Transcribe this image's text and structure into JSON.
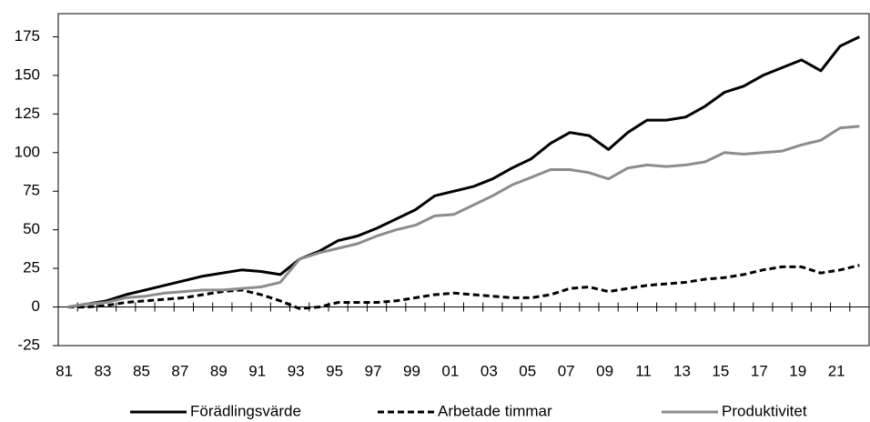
{
  "chart_data": {
    "type": "line",
    "categories": [
      "81",
      null,
      "83",
      null,
      "85",
      null,
      "87",
      null,
      "89",
      null,
      "91",
      null,
      "93",
      null,
      "95",
      null,
      "97",
      null,
      "99",
      null,
      "01",
      null,
      "03",
      null,
      "05",
      null,
      "07",
      null,
      "09",
      null,
      "11",
      null,
      "13",
      null,
      "15",
      null,
      "17",
      null,
      "19",
      null,
      "21",
      null
    ],
    "series": [
      {
        "name": "Förädlingsvärde",
        "color": "#000000",
        "dashed": false,
        "values": [
          0,
          2,
          4,
          8,
          11,
          14,
          17,
          20,
          22,
          24,
          23,
          21,
          31,
          36,
          43,
          46,
          51,
          57,
          63,
          72,
          75,
          78,
          83,
          90,
          96,
          106,
          113,
          111,
          102,
          113,
          121,
          121,
          123,
          130,
          139,
          143,
          150,
          155,
          160,
          153,
          169,
          175
        ]
      },
      {
        "name": "Arbetade timmar",
        "color": "#000000",
        "dashed": true,
        "values": [
          0,
          0,
          1,
          3,
          4,
          5,
          6,
          8,
          10,
          11,
          8,
          4,
          -1,
          0,
          3,
          3,
          3,
          4,
          6,
          8,
          9,
          8,
          7,
          6,
          6,
          8,
          12,
          13,
          10,
          12,
          14,
          15,
          16,
          18,
          19,
          21,
          24,
          26,
          26,
          22,
          24,
          27
        ]
      },
      {
        "name": "Produktivitet",
        "color": "#8c8c8c",
        "dashed": false,
        "values": [
          0,
          2,
          3,
          6,
          7,
          9,
          10,
          11,
          11,
          12,
          13,
          16,
          31,
          35,
          38,
          41,
          46,
          50,
          53,
          59,
          60,
          66,
          72,
          79,
          84,
          89,
          89,
          87,
          83,
          90,
          92,
          91,
          92,
          94,
          100,
          99,
          100,
          101,
          105,
          108,
          116,
          117
        ]
      }
    ],
    "ylim": [
      -25,
      190
    ],
    "yticks": [
      -25,
      0,
      25,
      50,
      75,
      100,
      125,
      150,
      175
    ],
    "grid": false,
    "legend": "bottom"
  }
}
